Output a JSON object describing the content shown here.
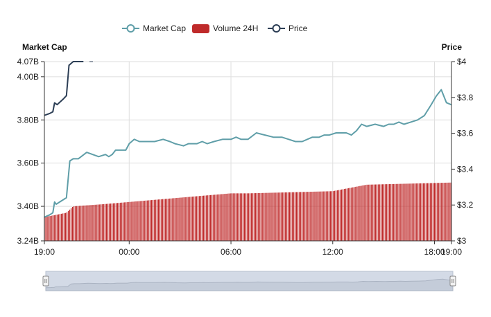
{
  "chart_data": {
    "type": "line+bar",
    "legend": [
      {
        "name": "Market Cap",
        "color": "#5f9ea8",
        "marker": "line-circle"
      },
      {
        "name": "Volume 24H",
        "color": "#bf2a2a",
        "marker": "rect"
      },
      {
        "name": "Price",
        "color": "#2c3e55",
        "marker": "line-circle"
      }
    ],
    "legend_placement": "top-center",
    "left_axis_title": "Market Cap",
    "right_axis_title": "Price",
    "left_ticks": [
      "3.24B",
      "3.40B",
      "3.60B",
      "3.80B",
      "4.00B",
      "4.07B"
    ],
    "right_ticks": [
      "$3",
      "$3.2",
      "$3.4",
      "$3.6",
      "$3.8",
      "$4"
    ],
    "x_ticks": [
      "19:00",
      "00:00",
      "06:00",
      "12:00",
      "18:00",
      "19:00"
    ],
    "left_ylim": [
      3.24,
      4.07
    ],
    "right_ylim": [
      3.0,
      4.0
    ],
    "xlim": [
      0,
      24
    ],
    "grid": true,
    "series": [
      {
        "name": "Market Cap",
        "axis": "left",
        "x": [
          0,
          0.3,
          0.5,
          0.6,
          0.7,
          1.3,
          1.5,
          1.7,
          2.0,
          2.5,
          3.2,
          3.6,
          3.8,
          4.0,
          4.2,
          4.4,
          4.6,
          4.8,
          5.0,
          5.3,
          5.6,
          6.0,
          6.5,
          7.0,
          7.4,
          7.7,
          8.2,
          8.5,
          9.0,
          9.3,
          9.6,
          10.0,
          10.5,
          11.0,
          11.3,
          11.6,
          12.0,
          12.5,
          13.0,
          13.5,
          14.0,
          14.4,
          14.8,
          15.2,
          15.5,
          15.8,
          16.2,
          16.5,
          16.8,
          17.2,
          17.5,
          17.8,
          18.1,
          18.4,
          18.7,
          19.0,
          19.5,
          20.0,
          20.3,
          20.6,
          20.9,
          21.2,
          21.6,
          22.0,
          22.4,
          22.8,
          23.1,
          23.4,
          23.7,
          24.0
        ],
        "values": [
          3.35,
          3.36,
          3.37,
          3.42,
          3.41,
          3.44,
          3.61,
          3.62,
          3.62,
          3.65,
          3.63,
          3.64,
          3.63,
          3.64,
          3.66,
          3.66,
          3.66,
          3.66,
          3.69,
          3.71,
          3.7,
          3.7,
          3.7,
          3.71,
          3.7,
          3.69,
          3.68,
          3.69,
          3.69,
          3.7,
          3.69,
          3.7,
          3.71,
          3.71,
          3.72,
          3.71,
          3.71,
          3.74,
          3.73,
          3.72,
          3.72,
          3.71,
          3.7,
          3.7,
          3.71,
          3.72,
          3.72,
          3.73,
          3.73,
          3.74,
          3.74,
          3.74,
          3.73,
          3.75,
          3.78,
          3.77,
          3.78,
          3.77,
          3.78,
          3.78,
          3.79,
          3.78,
          3.79,
          3.8,
          3.82,
          3.87,
          3.91,
          3.94,
          3.88,
          3.87
        ]
      },
      {
        "name": "Price",
        "axis": "right",
        "x": [
          0,
          0.3,
          0.5,
          0.6,
          0.75,
          1.1,
          1.3,
          1.45,
          1.7,
          2.0,
          2.3
        ],
        "values": [
          3.7,
          3.71,
          3.72,
          3.77,
          3.76,
          3.79,
          3.81,
          3.98,
          4.0,
          4.0,
          4.0
        ]
      },
      {
        "name": "Volume 24H",
        "axis": "left",
        "type": "bar",
        "x_range": [
          0,
          24
        ],
        "values_anchor": {
          "x": [
            0,
            1.3,
            1.7,
            3.5,
            5.0,
            8.0,
            11.0,
            12.0,
            17.0,
            19.0,
            24.0
          ],
          "y": [
            3.35,
            3.37,
            3.4,
            3.41,
            3.42,
            3.44,
            3.46,
            3.46,
            3.47,
            3.5,
            3.51
          ]
        }
      }
    ]
  }
}
